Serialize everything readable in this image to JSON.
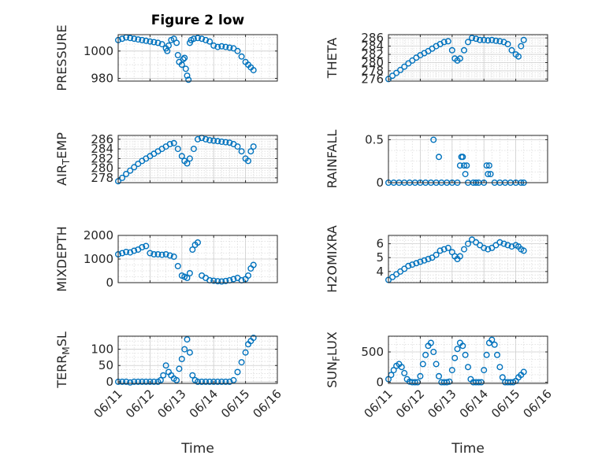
{
  "figure": {
    "title": "Figure 2 low",
    "marker_color": "#0072BD"
  },
  "chart_data": [
    {
      "type": "scatter",
      "ylabel": "PRESSURE",
      "title": "Figure 2 low",
      "xlim": [
        "06/11",
        "06/16"
      ],
      "ylim": [
        978,
        1012
      ],
      "xticks": [
        "06/11",
        "06/12",
        "06/13",
        "06/14",
        "06/15",
        "06/16"
      ],
      "yticks": [
        980,
        1000
      ],
      "x": [
        "06/11 00:00",
        "06/11 03:00",
        "06/11 06:00",
        "06/11 09:00",
        "06/11 12:00",
        "06/11 15:00",
        "06/11 18:00",
        "06/11 21:00",
        "06/12 00:00",
        "06/12 03:00",
        "06/12 06:00",
        "06/12 09:00",
        "06/12 12:00",
        "06/12 13:00",
        "06/12 14:00",
        "06/12 16:00",
        "06/12 18:00",
        "06/12 20:00",
        "06/12 21:00",
        "06/12 22:00",
        "06/13 00:00",
        "06/13 01:00",
        "06/13 02:00",
        "06/13 03:00",
        "06/13 04:00",
        "06/13 05:00",
        "06/13 06:00",
        "06/13 07:00",
        "06/13 09:00",
        "06/13 12:00",
        "06/13 15:00",
        "06/13 18:00",
        "06/13 21:00",
        "06/14 00:00",
        "06/14 03:00",
        "06/14 06:00",
        "06/14 09:00",
        "06/14 12:00",
        "06/14 15:00",
        "06/14 18:00",
        "06/14 21:00",
        "06/15 00:00",
        "06/15 02:00",
        "06/15 04:00",
        "06/15 06:00"
      ],
      "y": [
        1008,
        1009,
        1010,
        1009.5,
        1009,
        1008.5,
        1008,
        1007.5,
        1007,
        1006.5,
        1006,
        1005,
        1002,
        1000,
        1004,
        1008,
        1009,
        1006,
        997,
        992,
        990,
        994,
        995,
        987,
        982,
        979,
        1006,
        1008,
        1009,
        1009.5,
        1009,
        1008,
        1007,
        1004,
        1003,
        1003.5,
        1003,
        1002.5,
        1002,
        1000,
        996,
        992,
        990,
        988,
        986
      ]
    },
    {
      "type": "scatter",
      "ylabel": "THETA",
      "xlim": [
        "06/11",
        "06/16"
      ],
      "ylim": [
        275.5,
        286.8
      ],
      "xticks": [
        "06/11",
        "06/12",
        "06/13",
        "06/14",
        "06/15",
        "06/16"
      ],
      "yticks": [
        276,
        278,
        280,
        282,
        284,
        286
      ],
      "x": [
        "06/11 00:00",
        "06/11 03:00",
        "06/11 06:00",
        "06/11 09:00",
        "06/11 12:00",
        "06/11 15:00",
        "06/11 18:00",
        "06/11 21:00",
        "06/12 00:00",
        "06/12 03:00",
        "06/12 06:00",
        "06/12 09:00",
        "06/12 12:00",
        "06/12 15:00",
        "06/12 18:00",
        "06/12 21:00",
        "06/13 00:00",
        "06/13 02:00",
        "06/13 04:00",
        "06/13 06:00",
        "06/13 09:00",
        "06/13 12:00",
        "06/13 15:00",
        "06/13 18:00",
        "06/13 21:00",
        "06/14 00:00",
        "06/14 03:00",
        "06/14 06:00",
        "06/14 09:00",
        "06/14 12:00",
        "06/14 15:00",
        "06/14 18:00",
        "06/14 21:00",
        "06/15 00:00",
        "06/15 02:00",
        "06/15 04:00",
        "06/15 06:00"
      ],
      "y": [
        276,
        276.8,
        277.5,
        278.2,
        279,
        279.8,
        280.5,
        281.2,
        281.8,
        282.3,
        282.8,
        283.4,
        284,
        284.5,
        285,
        285.2,
        283,
        281,
        280.5,
        281,
        283,
        285,
        286,
        285.8,
        285.5,
        285.5,
        285.4,
        285.5,
        285.3,
        285.2,
        285,
        284.5,
        283,
        282,
        281.5,
        284,
        285.5
      ]
    },
    {
      "type": "scatter",
      "ylabel": "AIR_TEMP",
      "xlim": [
        "06/11",
        "06/16"
      ],
      "ylim": [
        277,
        286.8
      ],
      "xticks": [
        "06/11",
        "06/12",
        "06/13",
        "06/14",
        "06/15",
        "06/16"
      ],
      "yticks": [
        278,
        280,
        282,
        284,
        286
      ],
      "x": [
        "06/11 00:00",
        "06/11 03:00",
        "06/11 06:00",
        "06/11 09:00",
        "06/11 12:00",
        "06/11 15:00",
        "06/11 18:00",
        "06/11 21:00",
        "06/12 00:00",
        "06/12 03:00",
        "06/12 06:00",
        "06/12 09:00",
        "06/12 12:00",
        "06/12 15:00",
        "06/12 18:00",
        "06/12 21:00",
        "06/13 00:00",
        "06/13 02:00",
        "06/13 04:00",
        "06/13 06:00",
        "06/13 09:00",
        "06/13 12:00",
        "06/13 15:00",
        "06/13 18:00",
        "06/13 21:00",
        "06/14 00:00",
        "06/14 03:00",
        "06/14 06:00",
        "06/14 09:00",
        "06/14 12:00",
        "06/14 15:00",
        "06/14 18:00",
        "06/14 21:00",
        "06/15 00:00",
        "06/15 02:00",
        "06/15 04:00",
        "06/15 06:00"
      ],
      "y": [
        277.3,
        278,
        278.8,
        279.5,
        280.2,
        280.9,
        281.5,
        282,
        282.5,
        283,
        283.5,
        284,
        284.5,
        285,
        285.2,
        284,
        282.5,
        281.5,
        281,
        282,
        284,
        286,
        286.3,
        286,
        285.8,
        285.7,
        285.6,
        285.5,
        285.4,
        285.3,
        285,
        284.5,
        283.5,
        282,
        281.5,
        283.5,
        284.5
      ]
    },
    {
      "type": "scatter",
      "ylabel": "RAINFALL",
      "xlim": [
        "06/11",
        "06/16"
      ],
      "ylim": [
        0,
        0.55
      ],
      "xticks": [
        "06/11",
        "06/12",
        "06/13",
        "06/14",
        "06/15",
        "06/16"
      ],
      "yticks": [
        0,
        0.5
      ],
      "x": [
        "06/11 00:00",
        "06/11 04:00",
        "06/11 08:00",
        "06/11 12:00",
        "06/11 16:00",
        "06/11 20:00",
        "06/12 00:00",
        "06/12 04:00",
        "06/12 08:00",
        "06/12 10:00",
        "06/12 12:00",
        "06/12 14:00",
        "06/12 16:00",
        "06/12 20:00",
        "06/13 00:00",
        "06/13 04:00",
        "06/13 06:00",
        "06/13 07:00",
        "06/13 08:00",
        "06/13 09:00",
        "06/13 10:00",
        "06/13 11:00",
        "06/13 12:00",
        "06/13 16:00",
        "06/13 18:00",
        "06/13 20:00",
        "06/14 00:00",
        "06/14 02:00",
        "06/14 03:00",
        "06/14 04:00",
        "06/14 05:00",
        "06/14 08:00",
        "06/14 12:00",
        "06/14 16:00",
        "06/14 20:00",
        "06/15 00:00",
        "06/15 04:00",
        "06/15 06:00"
      ],
      "y": [
        0,
        0,
        0,
        0,
        0,
        0,
        0,
        0,
        0,
        0.5,
        0,
        0.3,
        0,
        0,
        0,
        0,
        0.2,
        0.3,
        0.3,
        0.2,
        0.1,
        0.2,
        0,
        0,
        0,
        0,
        0,
        0.2,
        0.1,
        0.2,
        0.1,
        0,
        0,
        0,
        0,
        0,
        0,
        0
      ]
    },
    {
      "type": "scatter",
      "ylabel": "MIXDEPTH",
      "xlim": [
        "06/11",
        "06/16"
      ],
      "ylim": [
        0,
        2000
      ],
      "xticks": [
        "06/11",
        "06/12",
        "06/13",
        "06/14",
        "06/15",
        "06/16"
      ],
      "yticks": [
        0,
        1000,
        2000
      ],
      "x": [
        "06/11 00:00",
        "06/11 03:00",
        "06/11 06:00",
        "06/11 09:00",
        "06/11 12:00",
        "06/11 15:00",
        "06/11 18:00",
        "06/11 21:00",
        "06/12 00:00",
        "06/12 03:00",
        "06/12 06:00",
        "06/12 09:00",
        "06/12 12:00",
        "06/12 15:00",
        "06/12 18:00",
        "06/12 21:00",
        "06/13 00:00",
        "06/13 02:00",
        "06/13 04:00",
        "06/13 06:00",
        "06/13 08:00",
        "06/13 10:00",
        "06/13 12:00",
        "06/13 15:00",
        "06/13 18:00",
        "06/13 21:00",
        "06/14 00:00",
        "06/14 03:00",
        "06/14 06:00",
        "06/14 09:00",
        "06/14 12:00",
        "06/14 15:00",
        "06/14 18:00",
        "06/14 21:00",
        "06/15 00:00",
        "06/15 02:00",
        "06/15 04:00",
        "06/15 06:00"
      ],
      "y": [
        1200,
        1250,
        1300,
        1280,
        1350,
        1400,
        1500,
        1550,
        1250,
        1200,
        1200,
        1180,
        1200,
        1150,
        1100,
        700,
        300,
        250,
        200,
        400,
        1400,
        1600,
        1700,
        300,
        200,
        100,
        80,
        60,
        50,
        70,
        100,
        150,
        200,
        100,
        150,
        300,
        600,
        750
      ]
    },
    {
      "type": "scatter",
      "ylabel": "H2OMIXRA",
      "xlim": [
        "06/11",
        "06/16"
      ],
      "ylim": [
        3.2,
        6.6
      ],
      "xticks": [
        "06/11",
        "06/12",
        "06/13",
        "06/14",
        "06/15",
        "06/16"
      ],
      "yticks": [
        4,
        5,
        6
      ],
      "x": [
        "06/11 00:00",
        "06/11 03:00",
        "06/11 06:00",
        "06/11 09:00",
        "06/11 12:00",
        "06/11 15:00",
        "06/11 18:00",
        "06/11 21:00",
        "06/12 00:00",
        "06/12 03:00",
        "06/12 06:00",
        "06/12 09:00",
        "06/12 12:00",
        "06/12 15:00",
        "06/12 18:00",
        "06/12 21:00",
        "06/13 00:00",
        "06/13 02:00",
        "06/13 04:00",
        "06/13 06:00",
        "06/13 09:00",
        "06/13 12:00",
        "06/13 15:00",
        "06/13 18:00",
        "06/13 21:00",
        "06/14 00:00",
        "06/14 03:00",
        "06/14 06:00",
        "06/14 09:00",
        "06/14 12:00",
        "06/14 15:00",
        "06/14 18:00",
        "06/14 21:00",
        "06/15 00:00",
        "06/15 02:00",
        "06/15 04:00",
        "06/15 06:00"
      ],
      "y": [
        3.4,
        3.6,
        3.8,
        4,
        4.2,
        4.4,
        4.5,
        4.6,
        4.7,
        4.8,
        4.9,
        5,
        5.2,
        5.5,
        5.6,
        5.7,
        5.4,
        5.1,
        4.9,
        5.1,
        5.6,
        6,
        6.3,
        6.1,
        5.9,
        5.7,
        5.6,
        5.7,
        5.9,
        6.1,
        6,
        5.9,
        5.8,
        5.9,
        5.8,
        5.6,
        5.5
      ]
    },
    {
      "type": "scatter",
      "ylabel": "TERR_MSL",
      "xlim": [
        "06/11",
        "06/16"
      ],
      "ylim": [
        -5,
        140
      ],
      "xticks": [
        "06/11",
        "06/12",
        "06/13",
        "06/14",
        "06/15",
        "06/16"
      ],
      "yticks": [
        0,
        50,
        100
      ],
      "x": [
        "06/11 00:00",
        "06/11 03:00",
        "06/11 06:00",
        "06/11 09:00",
        "06/11 12:00",
        "06/11 15:00",
        "06/11 18:00",
        "06/11 21:00",
        "06/12 00:00",
        "06/12 03:00",
        "06/12 06:00",
        "06/12 08:00",
        "06/12 10:00",
        "06/12 12:00",
        "06/12 14:00",
        "06/12 16:00",
        "06/12 18:00",
        "06/12 20:00",
        "06/12 22:00",
        "06/13 00:00",
        "06/13 02:00",
        "06/13 04:00",
        "06/13 06:00",
        "06/13 08:00",
        "06/13 10:00",
        "06/13 12:00",
        "06/13 15:00",
        "06/13 18:00",
        "06/13 21:00",
        "06/14 00:00",
        "06/14 03:00",
        "06/14 06:00",
        "06/14 09:00",
        "06/14 12:00",
        "06/14 15:00",
        "06/14 18:00",
        "06/14 21:00",
        "06/15 00:00",
        "06/15 02:00",
        "06/15 04:00",
        "06/15 06:00"
      ],
      "y": [
        0,
        0,
        0,
        -2,
        0,
        0,
        0,
        0,
        0,
        0,
        0,
        5,
        20,
        50,
        30,
        20,
        10,
        5,
        40,
        70,
        100,
        130,
        90,
        20,
        5,
        0,
        0,
        0,
        0,
        0,
        0,
        0,
        0,
        0,
        5,
        30,
        60,
        90,
        115,
        125,
        135
      ]
    },
    {
      "type": "scatter",
      "ylabel": "SUN_FLUX",
      "xlim": [
        "06/11",
        "06/16"
      ],
      "ylim": [
        -20,
        760
      ],
      "xticks": [
        "06/11",
        "06/12",
        "06/13",
        "06/14",
        "06/15",
        "06/16"
      ],
      "yticks": [
        0,
        500
      ],
      "x": [
        "06/11 00:00",
        "06/11 02:00",
        "06/11 04:00",
        "06/11 06:00",
        "06/11 08:00",
        "06/11 10:00",
        "06/11 12:00",
        "06/11 14:00",
        "06/11 16:00",
        "06/11 18:00",
        "06/11 20:00",
        "06/11 22:00",
        "06/12 00:00",
        "06/12 02:00",
        "06/12 04:00",
        "06/12 06:00",
        "06/12 08:00",
        "06/12 10:00",
        "06/12 12:00",
        "06/12 14:00",
        "06/12 16:00",
        "06/12 18:00",
        "06/12 20:00",
        "06/12 22:00",
        "06/13 00:00",
        "06/13 02:00",
        "06/13 04:00",
        "06/13 06:00",
        "06/13 08:00",
        "06/13 10:00",
        "06/13 12:00",
        "06/13 14:00",
        "06/13 16:00",
        "06/13 18:00",
        "06/13 20:00",
        "06/13 22:00",
        "06/14 00:00",
        "06/14 02:00",
        "06/14 04:00",
        "06/14 06:00",
        "06/14 08:00",
        "06/14 10:00",
        "06/14 12:00",
        "06/14 14:00",
        "06/14 16:00",
        "06/14 18:00",
        "06/14 20:00",
        "06/14 22:00",
        "06/15 00:00",
        "06/15 02:00",
        "06/15 04:00",
        "06/15 06:00"
      ],
      "y": [
        50,
        120,
        200,
        270,
        300,
        250,
        150,
        50,
        10,
        0,
        0,
        0,
        100,
        300,
        450,
        600,
        650,
        500,
        300,
        100,
        0,
        0,
        0,
        10,
        200,
        400,
        550,
        650,
        600,
        450,
        250,
        50,
        0,
        0,
        0,
        0,
        200,
        450,
        650,
        700,
        620,
        450,
        250,
        80,
        0,
        0,
        0,
        0,
        20,
        80,
        120,
        170
      ]
    }
  ],
  "xlabel": "Time"
}
